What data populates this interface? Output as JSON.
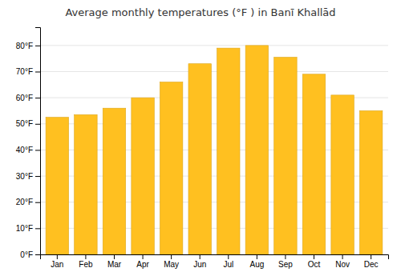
{
  "chart_data": {
    "type": "bar",
    "title": "Average monthly temperatures (°F ) in Banī Khallād",
    "categories": [
      "Jan",
      "Feb",
      "Mar",
      "Apr",
      "May",
      "Jun",
      "Jul",
      "Aug",
      "Sep",
      "Oct",
      "Nov",
      "Dec"
    ],
    "values": [
      52.5,
      53.5,
      56.0,
      60.0,
      66.0,
      73.0,
      79.0,
      80.0,
      75.5,
      69.0,
      61.0,
      55.0
    ],
    "color": "#FFC020",
    "ylim": [
      0,
      87
    ],
    "yticks": [
      {
        "value": 0,
        "label": "0°F"
      },
      {
        "value": 10,
        "label": "10°F"
      },
      {
        "value": 20,
        "label": "20°F"
      },
      {
        "value": 30,
        "label": "30°F"
      },
      {
        "value": 40,
        "label": "40°F"
      },
      {
        "value": 50,
        "label": "50°F"
      },
      {
        "value": 60,
        "label": "60°F"
      },
      {
        "value": 70,
        "label": "70°F"
      },
      {
        "value": 80,
        "label": "80°F"
      }
    ],
    "grid": true
  }
}
